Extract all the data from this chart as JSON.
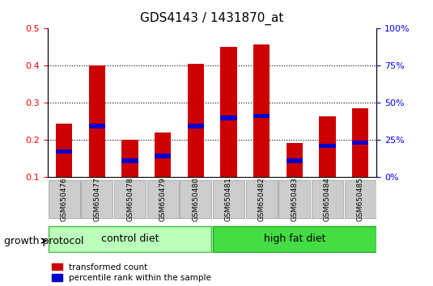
{
  "title": "GDS4143 / 1431870_at",
  "samples": [
    "GSM650476",
    "GSM650477",
    "GSM650478",
    "GSM650479",
    "GSM650480",
    "GSM650481",
    "GSM650482",
    "GSM650483",
    "GSM650484",
    "GSM650485"
  ],
  "transformed_count": [
    0.245,
    0.4,
    0.2,
    0.22,
    0.405,
    0.45,
    0.458,
    0.193,
    0.265,
    0.285
  ],
  "percentile_rank": [
    0.17,
    0.238,
    0.145,
    0.158,
    0.238,
    0.26,
    0.265,
    0.145,
    0.185,
    0.193
  ],
  "ylim": [
    0.1,
    0.5
  ],
  "yticks_left": [
    0.1,
    0.2,
    0.3,
    0.4,
    0.5
  ],
  "yticks_right": [
    0,
    25,
    50,
    75,
    100
  ],
  "group_labels": [
    "control diet",
    "high fat diet"
  ],
  "bar_color": "#cc0000",
  "percentile_color": "#0000cc",
  "bar_width": 0.5,
  "growth_protocol_label": "growth protocol",
  "legend_labels": [
    "transformed count",
    "percentile rank within the sample"
  ],
  "title_fontsize": 11,
  "tick_fontsize": 8,
  "label_fontsize": 9
}
